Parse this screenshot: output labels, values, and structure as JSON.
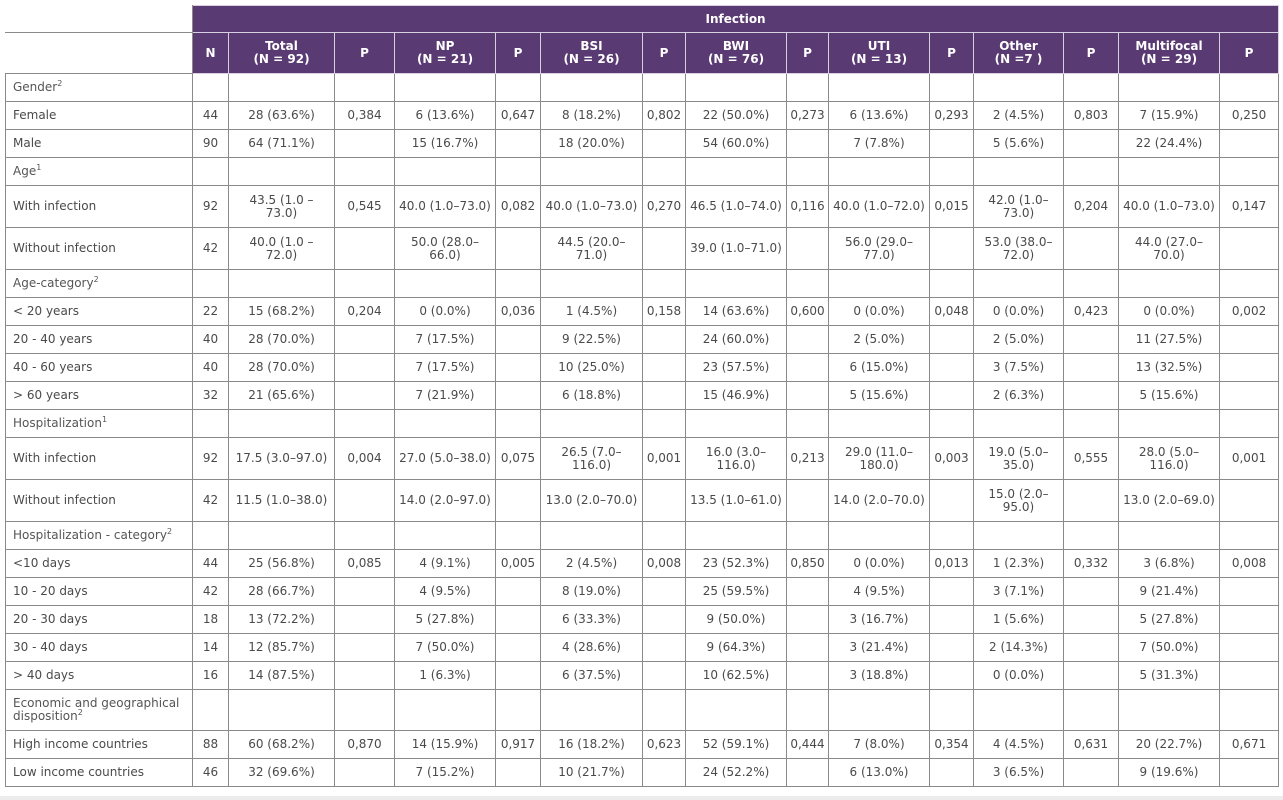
{
  "table": {
    "top_header": "Infection",
    "columns": [
      {
        "title": "N",
        "sub": ""
      },
      {
        "title": "Total",
        "sub": "(N = 92)"
      },
      {
        "title": "P",
        "sub": ""
      },
      {
        "title": "NP",
        "sub": "(N = 21)"
      },
      {
        "title": "P",
        "sub": ""
      },
      {
        "title": "BSI",
        "sub": "(N = 26)"
      },
      {
        "title": "P",
        "sub": ""
      },
      {
        "title": "BWI",
        "sub": "(N = 76)"
      },
      {
        "title": "P",
        "sub": ""
      },
      {
        "title": "UTI",
        "sub": "(N = 13)"
      },
      {
        "title": "P",
        "sub": ""
      },
      {
        "title": "Other",
        "sub": "(N =7 )"
      },
      {
        "title": "P",
        "sub": ""
      },
      {
        "title": "Multifocal",
        "sub": "(N = 29)"
      },
      {
        "title": "P",
        "sub": ""
      }
    ],
    "rows": [
      {
        "type": "section",
        "label": "Gender",
        "sup": "2",
        "h": "h28",
        "cells": []
      },
      {
        "type": "data",
        "label": "Female",
        "h": "h28",
        "cells": [
          "44",
          "28 (63.6%)",
          "0,384",
          "6 (13.6%)",
          "0,647",
          "8 (18.2%)",
          "0,802",
          "22 (50.0%)",
          "0,273",
          "6 (13.6%)",
          "0,293",
          "2 (4.5%)",
          "0,803",
          "7 (15.9%)",
          "0,250"
        ]
      },
      {
        "type": "data",
        "label": "Male",
        "h": "h28",
        "cells": [
          "90",
          "64 (71.1%)",
          "",
          "15 (16.7%)",
          "",
          "18 (20.0%)",
          "",
          "54 (60.0%)",
          "",
          "7 (7.8%)",
          "",
          "5 (5.6%)",
          "",
          "22 (24.4%)",
          ""
        ]
      },
      {
        "type": "section",
        "label": "Age",
        "sup": "1",
        "h": "h26",
        "cells": []
      },
      {
        "type": "data",
        "label": "With infection",
        "h": "h43",
        "cells": [
          "92",
          "43.5 (1.0 – 73.0)",
          "0,545",
          "40.0 (1.0–73.0)",
          "0,082",
          "40.0 (1.0–73.0)",
          "0,270",
          "46.5 (1.0–74.0)",
          "0,116",
          "40.0 (1.0–72.0)",
          "0,015",
          "42.0 (1.0–73.0)",
          "0,204",
          "40.0 (1.0–73.0)",
          "0,147"
        ]
      },
      {
        "type": "data",
        "label": "Without infection",
        "h": "h43",
        "cells": [
          "42",
          "40.0 (1.0 – 72.0)",
          "",
          "50.0 (28.0–66.0)",
          "",
          "44.5 (20.0–71.0)",
          "",
          "39.0 (1.0–71.0)",
          "",
          "56.0 (29.0–77.0)",
          "",
          "53.0 (38.0–72.0)",
          "",
          "44.0 (27.0–70.0)",
          ""
        ]
      },
      {
        "type": "section",
        "label": "Age-category",
        "sup": "2",
        "h": "h26",
        "cells": []
      },
      {
        "type": "data",
        "label": "< 20 years",
        "h": "h28",
        "cells": [
          "22",
          "15 (68.2%)",
          "0,204",
          "0 (0.0%)",
          "0,036",
          "1 (4.5%)",
          "0,158",
          "14 (63.6%)",
          "0,600",
          "0 (0.0%)",
          "0,048",
          "0 (0.0%)",
          "0,423",
          "0 (0.0%)",
          "0,002"
        ]
      },
      {
        "type": "data",
        "label": "20 - 40 years",
        "h": "h28",
        "cells": [
          "40",
          "28 (70.0%)",
          "",
          "7 (17.5%)",
          "",
          "9 (22.5%)",
          "",
          "24 (60.0%)",
          "",
          "2 (5.0%)",
          "",
          "2 (5.0%)",
          "",
          "11 (27.5%)",
          ""
        ]
      },
      {
        "type": "data",
        "label": "40 - 60 years",
        "h": "h28",
        "cells": [
          "40",
          "28 (70.0%)",
          "",
          "7 (17.5%)",
          "",
          "10 (25.0%)",
          "",
          "23 (57.5%)",
          "",
          "6 (15.0%)",
          "",
          "3 (7.5%)",
          "",
          "13 (32.5%)",
          ""
        ]
      },
      {
        "type": "data",
        "label": "> 60 years",
        "h": "h28",
        "cells": [
          "32",
          "21 (65.6%)",
          "",
          "7 (21.9%)",
          "",
          "6 (18.8%)",
          "",
          "15 (46.9%)",
          "",
          "5 (15.6%)",
          "",
          "2 (6.3%)",
          "",
          "5 (15.6%)",
          ""
        ]
      },
      {
        "type": "section",
        "label": "Hospitalization",
        "sup": "1",
        "h": "h26",
        "cells": []
      },
      {
        "type": "data",
        "label": "With infection",
        "h": "h43",
        "cells": [
          "92",
          "17.5 (3.0–97.0)",
          "0,004",
          "27.0 (5.0–38.0)",
          "0,075",
          "26.5 (7.0–116.0)",
          "0,001",
          "16.0 (3.0–116.0)",
          "0,213",
          "29.0 (11.0–180.0)",
          "0,003",
          "19.0 (5.0–35.0)",
          "0,555",
          "28.0 (5.0–116.0)",
          "0,001"
        ]
      },
      {
        "type": "data",
        "label": "Without infection",
        "h": "h43",
        "cells": [
          "42",
          "11.5 (1.0–38.0)",
          "",
          "14.0 (2.0–97.0)",
          "",
          "13.0 (2.0–70.0)",
          "",
          "13.5 (1.0–61.0)",
          "",
          "14.0 (2.0–70.0)",
          "",
          "15.0 (2.0–95.0)",
          "",
          "13.0 (2.0–69.0)",
          ""
        ]
      },
      {
        "type": "section",
        "label": "Hospitalization - category",
        "sup": "2",
        "h": "h26",
        "cells": []
      },
      {
        "type": "data",
        "label": "<10 days",
        "h": "h28",
        "cells": [
          "44",
          "25 (56.8%)",
          "0,085",
          "4 (9.1%)",
          "0,005",
          "2 (4.5%)",
          "0,008",
          "23 (52.3%)",
          "0,850",
          "0 (0.0%)",
          "0,013",
          "1 (2.3%)",
          "0,332",
          "3 (6.8%)",
          "0,008"
        ]
      },
      {
        "type": "data",
        "label": "10 - 20 days",
        "h": "h28",
        "cells": [
          "42",
          "28 (66.7%)",
          "",
          "4 (9.5%)",
          "",
          "8 (19.0%)",
          "",
          "25 (59.5%)",
          "",
          "4 (9.5%)",
          "",
          "3 (7.1%)",
          "",
          "9 (21.4%)",
          ""
        ]
      },
      {
        "type": "data",
        "label": "20 - 30 days",
        "h": "h28",
        "cells": [
          "18",
          "13 (72.2%)",
          "",
          "5 (27.8%)",
          "",
          "6 (33.3%)",
          "",
          "9 (50.0%)",
          "",
          "3 (16.7%)",
          "",
          "1 (5.6%)",
          "",
          "5 (27.8%)",
          ""
        ]
      },
      {
        "type": "data",
        "label": "30 - 40 days",
        "h": "h28",
        "cells": [
          "14",
          "12 (85.7%)",
          "",
          "7 (50.0%)",
          "",
          "4 (28.6%)",
          "",
          "9 (64.3%)",
          "",
          "3 (21.4%)",
          "",
          "2 (14.3%)",
          "",
          "7 (50.0%)",
          ""
        ]
      },
      {
        "type": "data",
        "label": "> 40 days",
        "h": "h28",
        "cells": [
          "16",
          "14 (87.5%)",
          "",
          "1 (6.3%)",
          "",
          "6 (37.5%)",
          "",
          "10 (62.5%)",
          "",
          "3 (18.8%)",
          "",
          "0 (0.0%)",
          "",
          "5 (31.3%)",
          ""
        ]
      },
      {
        "type": "section",
        "label": "Economic and geographical disposition",
        "sup": "2",
        "h": "h41",
        "cells": []
      },
      {
        "type": "data",
        "label": "High income countries",
        "h": "h28",
        "cells": [
          "88",
          "60 (68.2%)",
          "0,870",
          "14 (15.9%)",
          "0,917",
          "16 (18.2%)",
          "0,623",
          "52 (59.1%)",
          "0,444",
          "7 (8.0%)",
          "0,354",
          "4 (4.5%)",
          "0,631",
          "20 (22.7%)",
          "0,671"
        ]
      },
      {
        "type": "data",
        "label": "Low income countries",
        "h": "h28",
        "cells": [
          "46",
          "32 (69.6%)",
          "",
          "7 (15.2%)",
          "",
          "10 (21.7%)",
          "",
          "24 (52.2%)",
          "",
          "6 (13.0%)",
          "",
          "3 (6.5%)",
          "",
          "9 (19.6%)",
          ""
        ]
      }
    ]
  }
}
